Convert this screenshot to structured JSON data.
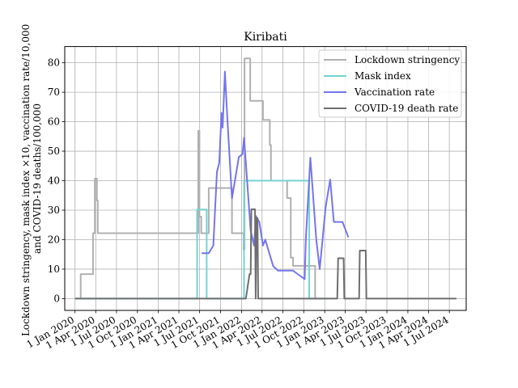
{
  "chart_data": {
    "type": "line",
    "title": "Kiribati",
    "xlabel": "",
    "ylabel": [
      "Lockdown stringency, mask index ×10, vaccination rate/10,000",
      "and COVID-19 deaths/100,000"
    ],
    "xlim": [
      "2019-11-17",
      "2024-09-13"
    ],
    "ylim": [
      -4,
      85.5
    ],
    "grid": true,
    "legend_position": "top-right",
    "x_ticks": [
      {
        "date": "2020-01-01",
        "label": "1 Jan 2020"
      },
      {
        "date": "2020-04-01",
        "label": "1 Apr 2020"
      },
      {
        "date": "2020-07-01",
        "label": "1 Jul 2020"
      },
      {
        "date": "2020-10-01",
        "label": "1 Oct 2020"
      },
      {
        "date": "2021-01-01",
        "label": "1 Jan 2021"
      },
      {
        "date": "2021-04-01",
        "label": "1 Apr 2021"
      },
      {
        "date": "2021-07-01",
        "label": "1 Jul 2021"
      },
      {
        "date": "2021-10-01",
        "label": "1 Oct 2021"
      },
      {
        "date": "2022-01-01",
        "label": "1 Jan 2022"
      },
      {
        "date": "2022-04-01",
        "label": "1 Apr 2022"
      },
      {
        "date": "2022-07-01",
        "label": "1 Jul 2022"
      },
      {
        "date": "2022-10-01",
        "label": "1 Oct 2022"
      },
      {
        "date": "2023-01-01",
        "label": "1 Jan 2023"
      },
      {
        "date": "2023-04-01",
        "label": "1 Apr 2023"
      },
      {
        "date": "2023-07-01",
        "label": "1 Jul 2023"
      },
      {
        "date": "2023-10-01",
        "label": "1 Oct 2023"
      },
      {
        "date": "2024-01-01",
        "label": "1 Jan 2024"
      },
      {
        "date": "2024-04-01",
        "label": "1 Apr 2024"
      },
      {
        "date": "2024-07-01",
        "label": "1 Jul 2024"
      }
    ],
    "y_ticks": [
      0,
      10,
      20,
      30,
      40,
      50,
      60,
      70,
      80
    ],
    "series": [
      {
        "name": "Lockdown stringency",
        "color": "#b0b0b0",
        "points": [
          [
            "2020-01-01",
            0
          ],
          [
            "2020-01-26",
            0
          ],
          [
            "2020-01-26",
            8.3
          ],
          [
            "2020-03-20",
            8.3
          ],
          [
            "2020-03-20",
            22.2
          ],
          [
            "2020-03-28",
            22.2
          ],
          [
            "2020-03-28",
            40.7
          ],
          [
            "2020-04-06",
            40.7
          ],
          [
            "2020-04-06",
            33.3
          ],
          [
            "2020-04-10",
            33.3
          ],
          [
            "2020-04-10",
            22.2
          ],
          [
            "2021-06-25",
            22.2
          ],
          [
            "2021-06-25",
            56.9
          ],
          [
            "2021-06-30",
            56.9
          ],
          [
            "2021-06-30",
            27.8
          ],
          [
            "2021-07-08",
            27.8
          ],
          [
            "2021-07-08",
            22.2
          ],
          [
            "2021-08-10",
            22.2
          ],
          [
            "2021-08-10",
            37.5
          ],
          [
            "2021-11-20",
            37.5
          ],
          [
            "2021-11-20",
            22.2
          ],
          [
            "2022-01-10",
            22.2
          ],
          [
            "2022-01-10",
            16.7
          ],
          [
            "2022-01-14",
            16.7
          ],
          [
            "2022-01-14",
            81.5
          ],
          [
            "2022-02-08",
            81.5
          ],
          [
            "2022-02-08",
            67.1
          ],
          [
            "2022-04-05",
            67.1
          ],
          [
            "2022-04-05",
            60.6
          ],
          [
            "2022-05-05",
            60.6
          ],
          [
            "2022-05-05",
            52.1
          ],
          [
            "2022-05-10",
            52.1
          ],
          [
            "2022-05-10",
            40.0
          ],
          [
            "2022-07-20",
            40.0
          ],
          [
            "2022-07-20",
            34.1
          ],
          [
            "2022-08-05",
            34.1
          ],
          [
            "2022-08-05",
            13.9
          ],
          [
            "2022-08-15",
            13.9
          ],
          [
            "2022-08-15",
            11.1
          ],
          [
            "2022-11-20",
            11.1
          ],
          [
            "2022-11-20",
            0
          ],
          [
            "2022-11-25",
            0
          ]
        ]
      },
      {
        "name": "Mask index",
        "color": "#75d3d3",
        "points": [
          [
            "2020-01-01",
            0
          ],
          [
            "2021-06-20",
            0
          ],
          [
            "2021-06-20",
            30.2
          ],
          [
            "2021-08-01",
            30.2
          ],
          [
            "2021-08-01",
            0
          ],
          [
            "2022-01-12",
            0
          ],
          [
            "2022-01-12",
            40.0
          ],
          [
            "2022-10-25",
            40.0
          ],
          [
            "2022-10-25",
            0
          ],
          [
            "2023-01-10",
            0
          ]
        ]
      },
      {
        "name": "Vaccination rate",
        "color": "#7575ee",
        "points": [
          [
            "2021-07-10",
            15.4
          ],
          [
            "2021-08-10",
            15.4
          ],
          [
            "2021-08-30",
            18.0
          ],
          [
            "2021-09-15",
            43.0
          ],
          [
            "2021-09-25",
            46.0
          ],
          [
            "2021-10-05",
            63.0
          ],
          [
            "2021-10-10",
            58.0
          ],
          [
            "2021-10-20",
            77.0
          ],
          [
            "2021-10-30",
            62.0
          ],
          [
            "2021-11-20",
            34.0
          ],
          [
            "2021-12-05",
            41.0
          ],
          [
            "2021-12-20",
            48.0
          ],
          [
            "2022-01-05",
            49.0
          ],
          [
            "2022-01-12",
            54.5
          ],
          [
            "2022-01-20",
            46.0
          ],
          [
            "2022-02-10",
            23.0
          ],
          [
            "2022-02-25",
            18.0
          ],
          [
            "2022-03-05",
            28.0
          ],
          [
            "2022-03-20",
            26.0
          ],
          [
            "2022-04-05",
            18.0
          ],
          [
            "2022-04-15",
            20.0
          ],
          [
            "2022-05-20",
            11.0
          ],
          [
            "2022-06-10",
            9.5
          ],
          [
            "2022-08-15",
            9.5
          ],
          [
            "2022-09-10",
            8.0
          ],
          [
            "2022-10-05",
            6.6
          ],
          [
            "2022-10-10",
            20.0
          ],
          [
            "2022-10-30",
            47.8
          ],
          [
            "2022-11-25",
            20.0
          ],
          [
            "2022-12-10",
            10.0
          ],
          [
            "2023-01-05",
            31.0
          ],
          [
            "2023-01-25",
            40.4
          ],
          [
            "2023-02-10",
            26.0
          ],
          [
            "2023-03-20",
            26.0
          ],
          [
            "2023-04-15",
            20.8
          ]
        ]
      },
      {
        "name": "COVID-19 death rate",
        "color": "#6e6e6e",
        "points": [
          [
            "2020-01-01",
            0
          ],
          [
            "2022-01-20",
            0
          ],
          [
            "2022-02-05",
            8.3
          ],
          [
            "2022-02-10",
            8.3
          ],
          [
            "2022-02-13",
            30.3
          ],
          [
            "2022-03-01",
            30.3
          ],
          [
            "2022-03-04",
            0
          ],
          [
            "2022-03-08",
            27.3
          ],
          [
            "2022-03-12",
            27.3
          ],
          [
            "2022-03-15",
            0
          ],
          [
            "2023-02-25",
            0
          ],
          [
            "2023-03-01",
            13.7
          ],
          [
            "2023-03-25",
            13.7
          ],
          [
            "2023-03-28",
            0
          ],
          [
            "2023-06-01",
            0
          ],
          [
            "2023-06-04",
            16.3
          ],
          [
            "2023-06-30",
            16.3
          ],
          [
            "2023-07-03",
            0
          ],
          [
            "2024-08-01",
            0
          ]
        ]
      }
    ]
  }
}
